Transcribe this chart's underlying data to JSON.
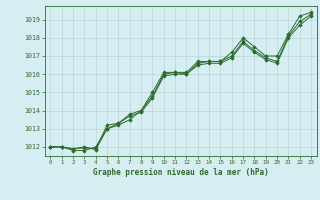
{
  "title": "Graphe pression niveau de la mer (hPa)",
  "bg_color": "#d6eef2",
  "grid_color": "#b8d4d8",
  "line_color": "#2d6a2d",
  "marker_color": "#2d6a2d",
  "xlim": [
    -0.5,
    23.5
  ],
  "ylim": [
    1011.5,
    1019.75
  ],
  "yticks": [
    1012,
    1013,
    1014,
    1015,
    1016,
    1017,
    1018,
    1019
  ],
  "xticks": [
    0,
    1,
    2,
    3,
    4,
    5,
    6,
    7,
    8,
    9,
    10,
    11,
    12,
    13,
    14,
    15,
    16,
    17,
    18,
    19,
    20,
    21,
    22,
    23
  ],
  "series": [
    [
      1012.0,
      1012.0,
      1011.8,
      1011.8,
      1012.0,
      1013.0,
      1013.2,
      1013.5,
      1014.0,
      1015.0,
      1016.1,
      1016.1,
      1016.1,
      1016.7,
      1016.7,
      1016.7,
      1017.2,
      1018.0,
      1017.5,
      1017.0,
      1017.0,
      1018.2,
      1019.2,
      1019.4
    ],
    [
      1012.0,
      1012.0,
      1011.9,
      1012.0,
      1011.85,
      1013.0,
      1013.3,
      1013.8,
      1014.0,
      1014.8,
      1016.0,
      1016.1,
      1016.0,
      1016.6,
      1016.7,
      1016.7,
      1017.0,
      1017.8,
      1017.3,
      1016.9,
      1016.7,
      1018.1,
      1018.9,
      1019.3
    ],
    [
      1012.0,
      1012.0,
      1011.9,
      1011.95,
      1011.9,
      1013.2,
      1013.3,
      1013.7,
      1013.9,
      1014.7,
      1015.9,
      1016.0,
      1016.0,
      1016.5,
      1016.6,
      1016.6,
      1016.9,
      1017.7,
      1017.2,
      1016.8,
      1016.6,
      1018.0,
      1018.7,
      1019.2
    ]
  ],
  "figsize": [
    3.2,
    2.0
  ],
  "dpi": 100
}
